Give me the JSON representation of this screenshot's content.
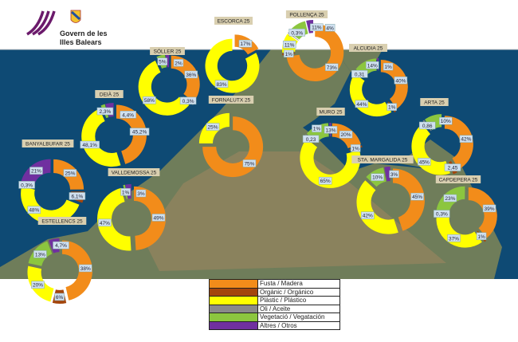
{
  "header": {
    "org_line1": "Govern de les",
    "org_line2": "Illes Balears"
  },
  "colors": {
    "fusta": "#f28c1a",
    "organic": "#a4450c",
    "plastic": "#ffff00",
    "oli": "#8a8a8a",
    "vegetacio": "#8cc63f",
    "altres": "#7030a0",
    "sea": "#0e4a74",
    "land": "#6f7d5a"
  },
  "legend": [
    {
      "key": "fusta",
      "label": "Fusta / Madera"
    },
    {
      "key": "organic",
      "label": "Orgànic / Orgánico"
    },
    {
      "key": "plastic",
      "label": "Plàstic / Plástico"
    },
    {
      "key": "oli",
      "label": "Oli / Aceite"
    },
    {
      "key": "vegetacio",
      "label": "Vegetació / Vegatación"
    },
    {
      "key": "altres",
      "label": "Altres / Otros"
    }
  ],
  "chart_data": [
    {
      "type": "pie",
      "title": "ESCORCA 25",
      "slices": [
        {
          "category": "fusta",
          "value": 17,
          "label": "17%"
        },
        {
          "category": "plastic",
          "value": 83,
          "label": "83%"
        }
      ]
    },
    {
      "type": "pie",
      "title": "POLLENÇA 25",
      "slices": [
        {
          "category": "fusta",
          "value": 73,
          "label": "73%"
        },
        {
          "category": "organic",
          "value": 1,
          "label": "1%"
        },
        {
          "category": "plastic",
          "value": 11,
          "label": "11%"
        },
        {
          "category": "oli",
          "value": 0.3,
          "label": "0,3%"
        },
        {
          "category": "vegetacio",
          "value": 11,
          "label": "11%"
        },
        {
          "category": "altres",
          "value": 4,
          "label": "4%"
        }
      ]
    },
    {
      "type": "pie",
      "title": "SÓLLER 25",
      "slices": [
        {
          "category": "fusta",
          "value": 36,
          "label": "36%"
        },
        {
          "category": "oli",
          "value": 0.3,
          "label": "0,3%"
        },
        {
          "category": "plastic",
          "value": 58,
          "label": "58%"
        },
        {
          "category": "vegetacio",
          "value": 5,
          "label": "5%"
        },
        {
          "category": "altres",
          "value": 2,
          "label": "2%"
        }
      ]
    },
    {
      "type": "pie",
      "title": "DEIÀ 25",
      "slices": [
        {
          "category": "fusta",
          "value": 45.2,
          "label": "45,2%"
        },
        {
          "category": "plastic",
          "value": 48.1,
          "label": "48,1%"
        },
        {
          "category": "vegetacio",
          "value": 2.3,
          "label": "2,3%"
        },
        {
          "category": "altres",
          "value": 4.4,
          "label": "4,4%"
        }
      ]
    },
    {
      "type": "pie",
      "title": "FORNALUTX 25",
      "slices": [
        {
          "category": "fusta",
          "value": 75,
          "label": "75%"
        },
        {
          "category": "plastic",
          "value": 25,
          "label": "25%"
        }
      ]
    },
    {
      "type": "pie",
      "title": "BANYALBUFAR 25",
      "slices": [
        {
          "category": "fusta",
          "value": 25,
          "label": "25%"
        },
        {
          "category": "organic",
          "value": 6.1,
          "label": "6,1%"
        },
        {
          "category": "plastic",
          "value": 48,
          "label": "48%"
        },
        {
          "category": "oli",
          "value": 0.3,
          "label": "0,3%"
        },
        {
          "category": "altres",
          "value": 21,
          "label": "21%"
        }
      ]
    },
    {
      "type": "pie",
      "title": "VALLDEMOSSA 25",
      "slices": [
        {
          "category": "fusta",
          "value": 49,
          "label": "49%"
        },
        {
          "category": "plastic",
          "value": 47,
          "label": "47%"
        },
        {
          "category": "vegetacio",
          "value": 1,
          "label": "1%"
        },
        {
          "category": "altres",
          "value": 3,
          "label": "3%"
        }
      ]
    },
    {
      "type": "pie",
      "title": "ESTELLENCS 25",
      "slices": [
        {
          "category": "fusta",
          "value": 38,
          "label": "38%"
        },
        {
          "category": "organic",
          "value": 6,
          "label": "6%"
        },
        {
          "category": "plastic",
          "value": 20,
          "label": "20%"
        },
        {
          "category": "vegetacio",
          "value": 13,
          "label": "13%"
        },
        {
          "category": "altres",
          "value": 4.7,
          "label": "4,7%"
        }
      ]
    },
    {
      "type": "pie",
      "title": "ALCUDIA 25",
      "slices": [
        {
          "category": "fusta",
          "value": 40,
          "label": "40%"
        },
        {
          "category": "organic",
          "value": 1,
          "label": "1%"
        },
        {
          "category": "plastic",
          "value": 44,
          "label": "44%"
        },
        {
          "category": "oli",
          "value": 0.31,
          "label": "0,31"
        },
        {
          "category": "vegetacio",
          "value": 14,
          "label": "14%"
        },
        {
          "category": "altres",
          "value": 1,
          "label": "1%"
        }
      ]
    },
    {
      "type": "pie",
      "title": "MURO 25",
      "slices": [
        {
          "category": "fusta",
          "value": 20,
          "label": "20%"
        },
        {
          "category": "organic",
          "value": 1,
          "label": "1%"
        },
        {
          "category": "plastic",
          "value": 65,
          "label": "65%"
        },
        {
          "category": "oli",
          "value": 0.23,
          "label": "0,23"
        },
        {
          "category": "vegetacio",
          "value": 13,
          "label": "13%"
        },
        {
          "category": "altres",
          "value": 1,
          "label": "1%"
        }
      ]
    },
    {
      "type": "pie",
      "title": "ARTA 25",
      "slices": [
        {
          "category": "fusta",
          "value": 42,
          "label": "42%"
        },
        {
          "category": "organic",
          "value": 2.45,
          "label": "2,45"
        },
        {
          "category": "plastic",
          "value": 45,
          "label": "45%"
        },
        {
          "category": "oli",
          "value": 0.86,
          "label": "0,86"
        },
        {
          "category": "vegetacio",
          "value": 10,
          "label": "10%"
        }
      ]
    },
    {
      "type": "pie",
      "title": "STA. MARGALIDA 25",
      "slices": [
        {
          "category": "fusta",
          "value": 45,
          "label": "45%"
        },
        {
          "category": "plastic",
          "value": 42,
          "label": "42%"
        },
        {
          "category": "vegetacio",
          "value": 10,
          "label": "10%"
        },
        {
          "category": "altres",
          "value": 3,
          "label": "3%"
        }
      ]
    },
    {
      "type": "pie",
      "title": "CAPDEPERA 25",
      "slices": [
        {
          "category": "fusta",
          "value": 39,
          "label": "39%"
        },
        {
          "category": "organic",
          "value": 1,
          "label": "1%"
        },
        {
          "category": "plastic",
          "value": 37,
          "label": "37%"
        },
        {
          "category": "oli",
          "value": 0.3,
          "label": "0,3%"
        },
        {
          "category": "vegetacio",
          "value": 23,
          "label": "23%"
        }
      ]
    }
  ]
}
